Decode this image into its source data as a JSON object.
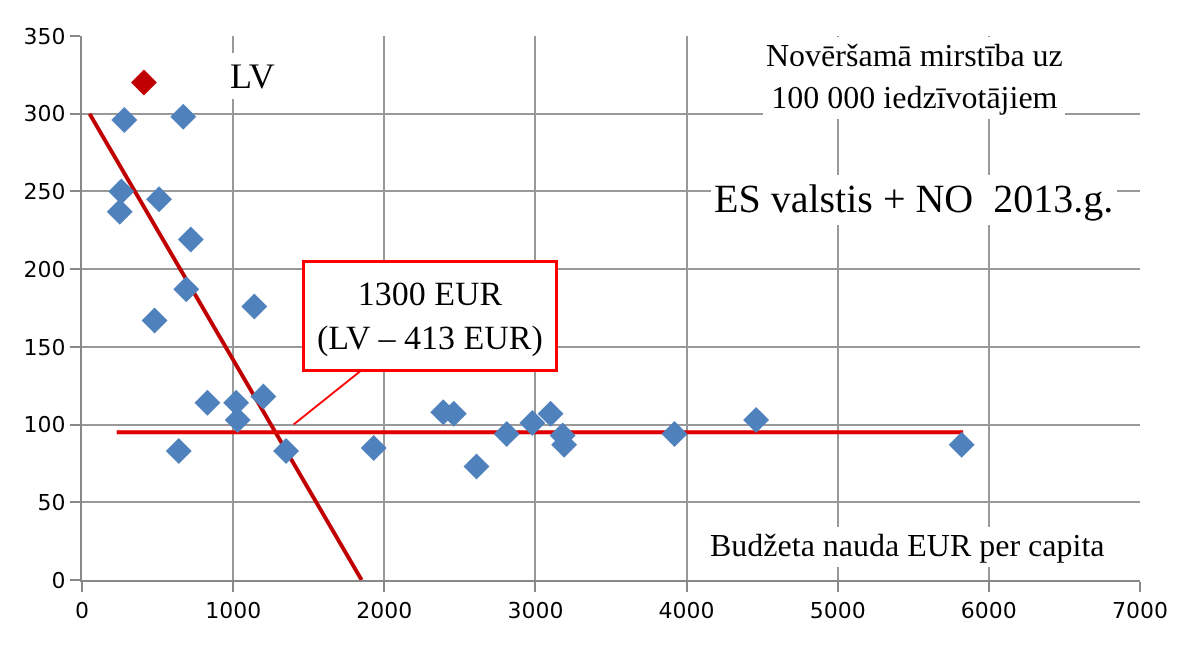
{
  "chart_data": {
    "type": "scatter",
    "marker": "diamond",
    "grid": true,
    "xlim": [
      0,
      7000
    ],
    "xticks": [
      0,
      1000,
      2000,
      3000,
      4000,
      5000,
      6000,
      7000
    ],
    "ylim": [
      0,
      350
    ],
    "yticks": [
      0,
      50,
      100,
      150,
      200,
      250,
      300,
      350
    ],
    "title": "ES valstis + NO  2013.g.",
    "xlabel": "Budžeta nauda EUR per capita",
    "ylabel": "Novēršamā mirstība uz\n100 000 iedzīvotājiem",
    "series": [
      {
        "color": "#4f81bd",
        "x": [
          280,
          260,
          250,
          510,
          480,
          690,
          640,
          830,
          1020,
          1030,
          1140,
          1200,
          1350,
          1930,
          2390,
          2460,
          2610,
          2810,
          2980,
          3100,
          3180,
          3190,
          3920,
          4460,
          5820
        ],
        "values": [
          296,
          250,
          237,
          245,
          167,
          187,
          83,
          114,
          114,
          103,
          176,
          118,
          83,
          85,
          108,
          107,
          73,
          94,
          101,
          107,
          93,
          87,
          94,
          103,
          87
        ]
      },
      {
        "color": "#c00000",
        "x": [
          410
        ],
        "values": [
          320
        ]
      },
      {
        "color": "#4f81bd",
        "x": [
          670,
          720
        ],
        "values": [
          298,
          219
        ]
      },
      {
        "type": "line",
        "marker": "none",
        "color": "#c00000",
        "x": [
          50,
          1850
        ],
        "values": [
          300,
          0
        ]
      },
      {
        "type": "line",
        "marker": "none",
        "color": "#e00000",
        "x": [
          230,
          5830
        ],
        "values": [
          95,
          95
        ]
      }
    ],
    "annotations": [
      "LV",
      {
        "text": "1300 EUR\n(LV – 413 EUR)",
        "x": 1400,
        "y": 100
      }
    ]
  }
}
